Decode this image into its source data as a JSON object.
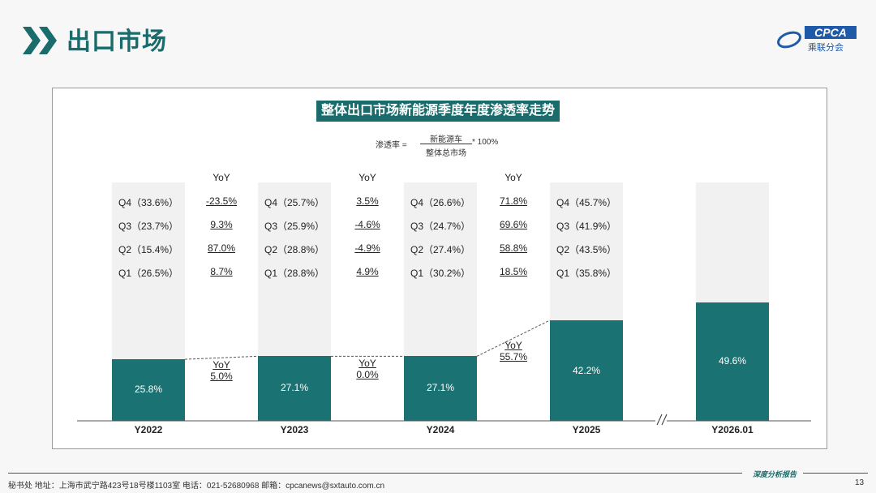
{
  "header": {
    "title": "出口市场",
    "logo_text": "CPCA",
    "logo_sub": "乘联分会",
    "chevron_color": "#1a6b6b"
  },
  "chart_data": {
    "type": "bar",
    "title": "整体出口市场新能源季度年度渗透率走势",
    "formula": {
      "lhs": "渗透率 =",
      "numerator": "新能源车",
      "denominator": "整体总市场",
      "multiplier": "* 100%"
    },
    "categories": [
      "Y2022",
      "Y2023",
      "Y2024",
      "Y2025",
      "Y2026.01"
    ],
    "values": [
      25.8,
      27.1,
      27.1,
      42.2,
      49.6
    ],
    "value_labels": [
      "25.8%",
      "27.1%",
      "27.1%",
      "42.2%",
      "49.6%"
    ],
    "ylim": [
      0,
      100
    ],
    "bar_color": "#1a7372",
    "axis_break_between": [
      "Y2025",
      "Y2026.01"
    ],
    "annual_yoy": [
      {
        "label": "YoY",
        "value": "5.0%"
      },
      {
        "label": "YoY",
        "value": "0.0%"
      },
      {
        "label": "YoY",
        "value": "55.7%"
      }
    ],
    "quarters": [
      {
        "year": "Y2022",
        "rows": [
          "Q4（33.6%）",
          "Q3（23.7%）",
          "Q2（15.4%）",
          "Q1（26.5%）"
        ]
      },
      {
        "year": "Y2023",
        "rows": [
          "Q4（25.7%）",
          "Q3（25.9%）",
          "Q2（28.8%）",
          "Q1（28.8%）"
        ]
      },
      {
        "year": "Y2024",
        "rows": [
          "Q4（26.6%）",
          "Q3（24.7%）",
          "Q2（27.4%）",
          "Q1（30.2%）"
        ]
      },
      {
        "year": "Y2025",
        "rows": [
          "Q4（45.7%）",
          "Q3（41.9%）",
          "Q2（43.5%）",
          "Q1（35.8%）"
        ]
      }
    ],
    "quarter_yoy": [
      {
        "header": "YoY",
        "rows": [
          "-23.5%",
          "9.3%",
          "87.0%",
          "8.7%"
        ]
      },
      {
        "header": "YoY",
        "rows": [
          "3.5%",
          "-4.6%",
          "-4.9%",
          "4.9%"
        ]
      },
      {
        "header": "YoY",
        "rows": [
          "71.8%",
          "69.6%",
          "58.8%",
          "18.5%"
        ]
      }
    ]
  },
  "footer": {
    "text": "秘书处  地址：上海市武宁路423号18号楼1103室  电话：021-52680968  邮箱：cpcanews@sxtauto.com.cn",
    "tag": "深度分析报告",
    "page": "13"
  }
}
